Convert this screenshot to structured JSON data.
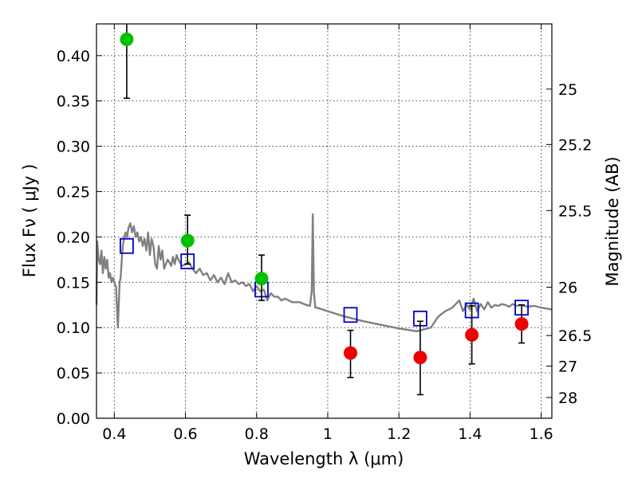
{
  "chart_data": {
    "type": "scatter",
    "xlabel": "Wavelength  λ (μm)",
    "ylabel": "Flux  Fν  ( μJy )",
    "y2label": "Magnitude (AB)",
    "xlim": [
      0.35,
      1.63
    ],
    "ylim": [
      0.0,
      0.435
    ],
    "x_ticks": [
      0.4,
      0.6,
      0.8,
      1.0,
      1.2,
      1.4,
      1.6
    ],
    "x_tick_labels": [
      "0.4",
      "0.6",
      "0.8",
      "1",
      "1.2",
      "1.4",
      "1.6"
    ],
    "y_ticks": [
      0.0,
      0.05,
      0.1,
      0.15,
      0.2,
      0.25,
      0.3,
      0.35,
      0.4
    ],
    "y_tick_labels": [
      "0.00",
      "0.05",
      "0.10",
      "0.15",
      "0.20",
      "0.25",
      "0.30",
      "0.35",
      "0.40"
    ],
    "y2_ticks": [
      25,
      25.2,
      25.5,
      26,
      26.5,
      27,
      28
    ],
    "y2_tick_labels": [
      "25",
      "25.2",
      "25.5",
      "26",
      "26.5",
      "27",
      "28"
    ],
    "grid": true,
    "series": [
      {
        "marker": "circle",
        "color": "#00c000",
        "points": [
          {
            "x": 0.435,
            "y": 0.418,
            "err_low": 0.353,
            "err_high": 0.435
          },
          {
            "x": 0.606,
            "y": 0.196,
            "err_low": 0.17,
            "err_high": 0.224
          },
          {
            "x": 0.814,
            "y": 0.154,
            "err_low": 0.13,
            "err_high": 0.18
          }
        ]
      },
      {
        "marker": "circle",
        "color": "#ee0000",
        "points": [
          {
            "x": 1.064,
            "y": 0.072,
            "err_low": 0.045,
            "err_high": 0.097
          },
          {
            "x": 1.26,
            "y": 0.067,
            "err_low": 0.026,
            "err_high": 0.107
          },
          {
            "x": 1.405,
            "y": 0.092,
            "err_low": 0.06,
            "err_high": 0.124
          },
          {
            "x": 1.545,
            "y": 0.104,
            "err_low": 0.083,
            "err_high": 0.125
          }
        ]
      },
      {
        "marker": "open-square",
        "color": "#0000cc",
        "points": [
          {
            "x": 0.435,
            "y": 0.19
          },
          {
            "x": 0.606,
            "y": 0.173
          },
          {
            "x": 0.814,
            "y": 0.142
          },
          {
            "x": 1.064,
            "y": 0.114
          },
          {
            "x": 1.26,
            "y": 0.11
          },
          {
            "x": 1.405,
            "y": 0.119
          },
          {
            "x": 1.545,
            "y": 0.122
          }
        ]
      },
      {
        "marker": "line",
        "color": "#808080",
        "x": [
          0.35,
          0.352,
          0.356,
          0.36,
          0.364,
          0.368,
          0.372,
          0.376,
          0.38,
          0.384,
          0.388,
          0.392,
          0.396,
          0.4,
          0.405,
          0.41,
          0.415,
          0.418,
          0.421,
          0.424,
          0.428,
          0.432,
          0.436,
          0.44,
          0.445,
          0.45,
          0.455,
          0.46,
          0.465,
          0.47,
          0.475,
          0.48,
          0.485,
          0.49,
          0.495,
          0.5,
          0.505,
          0.51,
          0.515,
          0.52,
          0.525,
          0.53,
          0.535,
          0.54,
          0.545,
          0.55,
          0.555,
          0.56,
          0.565,
          0.57,
          0.575,
          0.58,
          0.59,
          0.6,
          0.61,
          0.62,
          0.63,
          0.64,
          0.65,
          0.66,
          0.67,
          0.68,
          0.69,
          0.7,
          0.71,
          0.72,
          0.73,
          0.74,
          0.75,
          0.76,
          0.77,
          0.78,
          0.79,
          0.8,
          0.81,
          0.82,
          0.83,
          0.84,
          0.85,
          0.86,
          0.87,
          0.88,
          0.9,
          0.92,
          0.94,
          0.95,
          0.955,
          0.958,
          0.961,
          0.965,
          0.97,
          1.0,
          1.05,
          1.1,
          1.15,
          1.2,
          1.25,
          1.27,
          1.29,
          1.31,
          1.33,
          1.35,
          1.37,
          1.38,
          1.39,
          1.4,
          1.41,
          1.42,
          1.43,
          1.44,
          1.45,
          1.46,
          1.47,
          1.48,
          1.49,
          1.5,
          1.51,
          1.52,
          1.53,
          1.545,
          1.56,
          1.58,
          1.6,
          1.63
        ],
        "y": [
          0.125,
          0.195,
          0.175,
          0.17,
          0.185,
          0.16,
          0.178,
          0.165,
          0.175,
          0.155,
          0.16,
          0.15,
          0.155,
          0.15,
          0.145,
          0.1,
          0.15,
          0.155,
          0.175,
          0.19,
          0.2,
          0.205,
          0.2,
          0.21,
          0.215,
          0.205,
          0.212,
          0.2,
          0.205,
          0.195,
          0.2,
          0.19,
          0.198,
          0.185,
          0.205,
          0.18,
          0.198,
          0.19,
          0.17,
          0.165,
          0.19,
          0.175,
          0.185,
          0.165,
          0.17,
          0.175,
          0.172,
          0.168,
          0.178,
          0.17,
          0.18,
          0.175,
          0.168,
          0.17,
          0.172,
          0.165,
          0.16,
          0.165,
          0.158,
          0.16,
          0.152,
          0.158,
          0.15,
          0.155,
          0.148,
          0.16,
          0.15,
          0.152,
          0.148,
          0.15,
          0.146,
          0.148,
          0.14,
          0.146,
          0.14,
          0.142,
          0.13,
          0.138,
          0.134,
          0.134,
          0.13,
          0.132,
          0.128,
          0.128,
          0.125,
          0.124,
          0.14,
          0.225,
          0.14,
          0.122,
          0.122,
          0.118,
          0.112,
          0.107,
          0.103,
          0.099,
          0.096,
          0.098,
          0.1,
          0.112,
          0.118,
          0.122,
          0.13,
          0.118,
          0.125,
          0.12,
          0.132,
          0.118,
          0.126,
          0.12,
          0.128,
          0.122,
          0.125,
          0.124,
          0.126,
          0.125,
          0.123,
          0.126,
          0.124,
          0.125,
          0.123,
          0.124,
          0.122,
          0.12
        ]
      }
    ]
  }
}
